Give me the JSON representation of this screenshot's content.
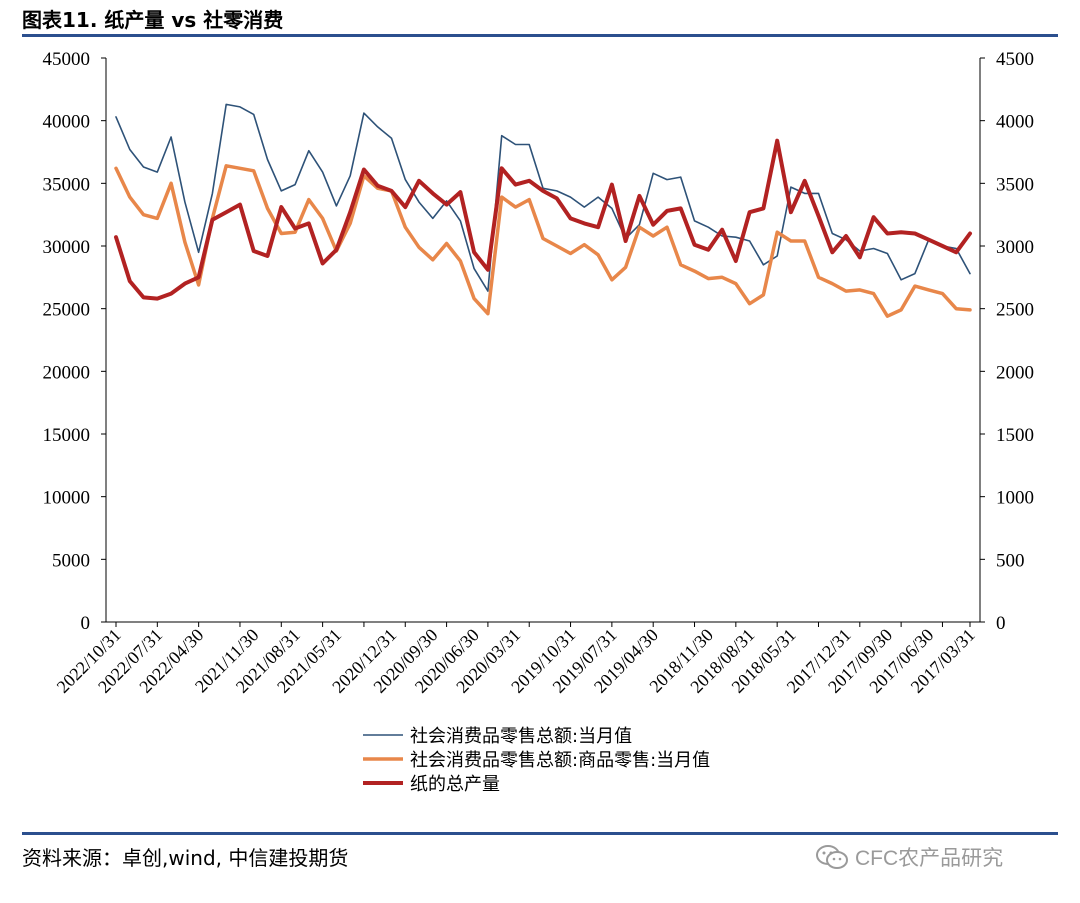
{
  "header": {
    "title": "图表11. 纸产量 vs 社零消费"
  },
  "footer": {
    "source": "资料来源：卓创,wind, 中信建投期货",
    "watermark": "CFC农产品研究"
  },
  "colors": {
    "rule": "#2b4f8e",
    "series_retail_total": "#2e5278",
    "series_retail_goods": "#e8874a",
    "series_paper": "#b22222"
  },
  "chart_data": {
    "type": "line",
    "title": "图表11. 纸产量 vs 社零消费",
    "x_order": "reverse-chronological",
    "x": [
      "2022/10/31",
      "2022/09/30",
      "2022/08/31",
      "2022/07/31",
      "2022/06/30",
      "2022/05/31",
      "2022/04/30",
      "2022/03/31",
      "2022/02/28",
      "2021/12/31",
      "2021/11/30",
      "2021/10/31",
      "2021/09/30",
      "2021/08/31",
      "2021/07/31",
      "2021/06/30",
      "2021/05/31",
      "2021/04/30",
      "2021/03/31",
      "2021/02/28",
      "2020/12/31",
      "2020/11/30",
      "2020/10/31",
      "2020/09/30",
      "2020/08/31",
      "2020/07/31",
      "2020/06/30",
      "2020/05/31",
      "2020/04/30",
      "2020/03/31",
      "2020/02/29",
      "2019/12/31",
      "2019/11/30",
      "2019/10/31",
      "2019/09/30",
      "2019/08/31",
      "2019/07/31",
      "2019/06/30",
      "2019/05/31",
      "2019/04/30",
      "2019/03/31",
      "2019/02/28",
      "2018/12/31",
      "2018/11/30",
      "2018/10/31",
      "2018/09/30",
      "2018/08/31",
      "2018/07/31",
      "2018/06/30",
      "2018/05/31",
      "2018/04/30",
      "2018/03/31",
      "2018/02/28",
      "2017/12/31",
      "2017/11/30",
      "2017/10/31",
      "2017/09/30",
      "2017/08/31",
      "2017/07/31",
      "2017/06/30",
      "2017/05/31",
      "2017/04/30",
      "2017/03/31"
    ],
    "x_tick_labels": [
      "2022/10/31",
      "2022/07/31",
      "2022/04/30",
      "2021/11/30",
      "2021/08/31",
      "2021/05/31",
      "2020/12/31",
      "2020/09/30",
      "2020/06/30",
      "2020/03/31",
      "2019/10/31",
      "2019/07/31",
      "2019/04/30",
      "2018/11/30",
      "2018/08/31",
      "2018/05/31",
      "2017/12/31",
      "2017/09/30",
      "2017/06/30",
      "2017/03/31"
    ],
    "y_left": {
      "min": 0,
      "max": 45000,
      "ticks": [
        0,
        5000,
        10000,
        15000,
        20000,
        25000,
        30000,
        35000,
        40000,
        45000
      ]
    },
    "y_right": {
      "min": 0,
      "max": 4500,
      "ticks": [
        0,
        500,
        1000,
        1500,
        2000,
        2500,
        3000,
        3500,
        4000,
        4500
      ]
    },
    "series": [
      {
        "name": "社会消费品零售总额:当月值",
        "axis": "left",
        "color": "#2e5278",
        "width": 1.6,
        "values": [
          40300,
          37700,
          36300,
          35900,
          38700,
          33500,
          29500,
          34200,
          41300,
          41100,
          40500,
          36900,
          34400,
          34900,
          37600,
          35900,
          33200,
          35600,
          40600,
          39500,
          38600,
          35300,
          33500,
          32200,
          33600,
          32000,
          28200,
          26400,
          38800,
          38100,
          38100,
          34600,
          34400,
          33900,
          33100,
          33900,
          33000,
          30600,
          31700,
          35800,
          35300,
          35500,
          32000,
          31500,
          30800,
          30700,
          30400,
          28500,
          29200,
          34700,
          34200,
          34200,
          31000,
          30500,
          29600,
          29800,
          29400,
          27300,
          27800,
          30500,
          30000,
          29800,
          27800
        ]
      },
      {
        "name": "社会消费品零售总额:商品零售:当月值",
        "axis": "left",
        "color": "#e8874a",
        "width": 3.5,
        "values": [
          36200,
          33900,
          32500,
          32200,
          35000,
          30300,
          26900,
          32200,
          36400,
          36200,
          36000,
          33000,
          31000,
          31100,
          33700,
          32200,
          29600,
          31800,
          35600,
          34600,
          34400,
          31500,
          29900,
          28900,
          30200,
          28800,
          25800,
          24600,
          33900,
          33100,
          33700,
          30600,
          30000,
          29400,
          30100,
          29300,
          27300,
          28300,
          31500,
          30800,
          31500,
          28500,
          28000,
          27400,
          27500,
          27000,
          25400,
          26100,
          31100,
          30400,
          30400,
          27500,
          27000,
          26400,
          26500,
          26200,
          24400,
          24900,
          26800,
          26500,
          26200,
          25000,
          24900
        ]
      },
      {
        "name": "纸的总产量",
        "axis": "right",
        "color": "#b22222",
        "width": 4,
        "values": [
          3070,
          2720,
          2590,
          2580,
          2620,
          2700,
          2750,
          3210,
          3270,
          3330,
          2960,
          2920,
          3310,
          3140,
          3180,
          2860,
          2970,
          3270,
          3610,
          3480,
          3440,
          3310,
          3520,
          3420,
          3330,
          3430,
          2950,
          2810,
          3620,
          3490,
          3520,
          3440,
          3380,
          3220,
          3180,
          3150,
          3490,
          3040,
          3400,
          3170,
          3280,
          3300,
          3010,
          2970,
          3130,
          2880,
          3270,
          3300,
          3840,
          3270,
          3520,
          3240,
          2950,
          3080,
          2910,
          3230,
          3100,
          3110,
          3100,
          3050,
          3000,
          2950,
          3100
        ]
      }
    ],
    "legend": {
      "placement": "bottom-center"
    },
    "grid": false
  }
}
